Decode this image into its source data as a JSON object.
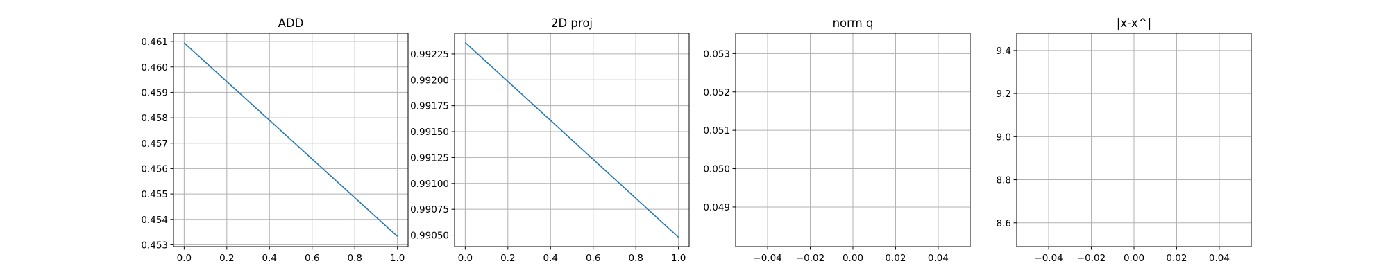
{
  "chart_data": [
    {
      "type": "line",
      "title": "ADD",
      "grid": true,
      "xlim": [
        -0.05,
        1.05
      ],
      "ylim": [
        0.45293,
        0.46133
      ],
      "xticks": [
        "0.0",
        "0.2",
        "0.4",
        "0.6",
        "0.8",
        "1.0"
      ],
      "yticks": [
        "0.453",
        "0.454",
        "0.455",
        "0.456",
        "0.457",
        "0.458",
        "0.459",
        "0.460",
        "0.461"
      ],
      "series": [
        {
          "x": [
            0.0,
            1.0
          ],
          "y": [
            0.46095,
            0.45333
          ],
          "color": "#1f77b4"
        }
      ]
    },
    {
      "type": "line",
      "title": "2D proj",
      "grid": true,
      "xlim": [
        -0.05,
        1.05
      ],
      "ylim": [
        0.99039,
        0.99245
      ],
      "xticks": [
        "0.0",
        "0.2",
        "0.4",
        "0.6",
        "0.8",
        "1.0"
      ],
      "yticks": [
        "0.99050",
        "0.99075",
        "0.99100",
        "0.99125",
        "0.99150",
        "0.99175",
        "0.99200",
        "0.99225"
      ],
      "series": [
        {
          "x": [
            0.0,
            1.0
          ],
          "y": [
            0.99236,
            0.99048
          ],
          "color": "#1f77b4"
        }
      ]
    },
    {
      "type": "line",
      "title": "norm q",
      "grid": true,
      "xlim": [
        -0.055,
        0.055
      ],
      "ylim": [
        0.04797,
        0.05353
      ],
      "xticks": [
        "−0.04",
        "−0.02",
        "0.00",
        "0.02",
        "0.04"
      ],
      "yticks": [
        "0.049",
        "0.050",
        "0.051",
        "0.052",
        "0.053"
      ],
      "series": []
    },
    {
      "type": "line",
      "title": "|x-x^|",
      "grid": true,
      "xlim": [
        -0.055,
        0.055
      ],
      "ylim": [
        8.49,
        9.48
      ],
      "xticks": [
        "−0.04",
        "−0.02",
        "0.00",
        "0.02",
        "0.04"
      ],
      "yticks": [
        "8.6",
        "8.8",
        "9.0",
        "9.2",
        "9.4"
      ],
      "series": []
    }
  ],
  "colors": {
    "line": "#1f77b4",
    "grid": "#b0b0b0",
    "axes": "#000000"
  }
}
